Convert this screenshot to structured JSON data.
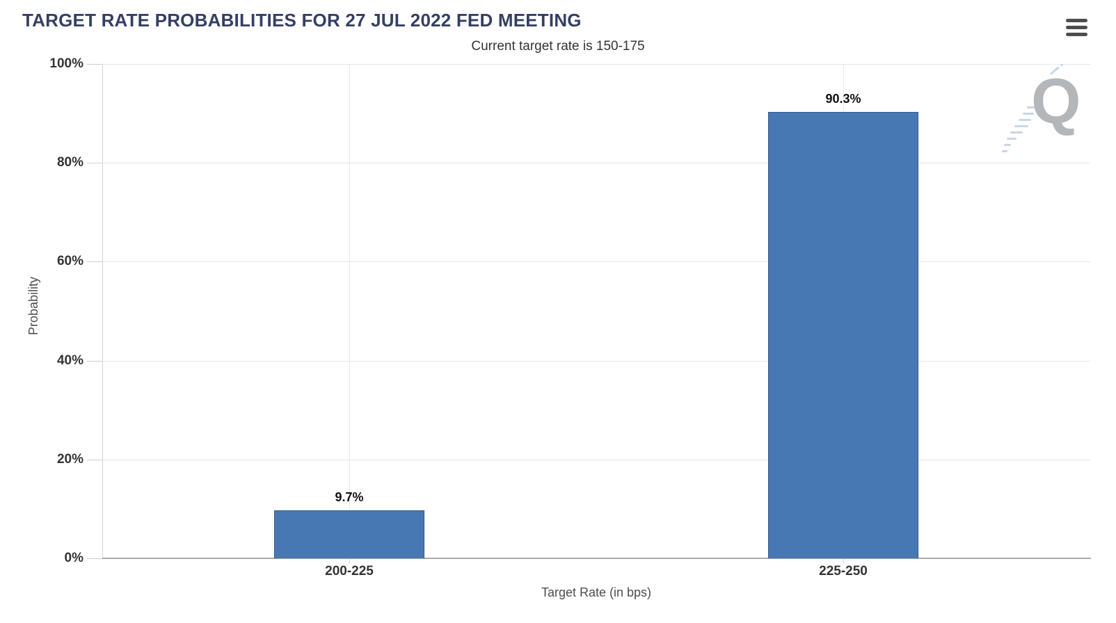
{
  "chart_data": {
    "type": "bar",
    "title": "TARGET RATE PROBABILITIES FOR 27 JUL 2022 FED MEETING",
    "subtitle": "Current target rate is 150-175",
    "categories": [
      "200-225",
      "225-250"
    ],
    "values": [
      9.7,
      90.3
    ],
    "data_labels": [
      "9.7%",
      "90.3%"
    ],
    "xlabel": "Target Rate (in bps)",
    "ylabel": "Probability",
    "ylim": [
      0,
      100
    ],
    "yticks": [
      0,
      20,
      40,
      60,
      80,
      100
    ],
    "ytick_labels": [
      "0%",
      "20%",
      "40%",
      "60%",
      "80%",
      "100%"
    ],
    "grid": true,
    "legend": "none"
  },
  "icons": {
    "menu": "hamburger-menu-icon",
    "watermark": "quikstrike-q-logo"
  },
  "watermark": {
    "letter": "Q"
  },
  "colors": {
    "bar_fill": "#4878b4",
    "bar_border": "#2f5a8c",
    "title": "#353f63",
    "grid": "#e6e6e6",
    "axis_line": "#a9a9a9",
    "watermark_gray": "#b4b7ba",
    "watermark_blue": "#c9d7e6"
  }
}
